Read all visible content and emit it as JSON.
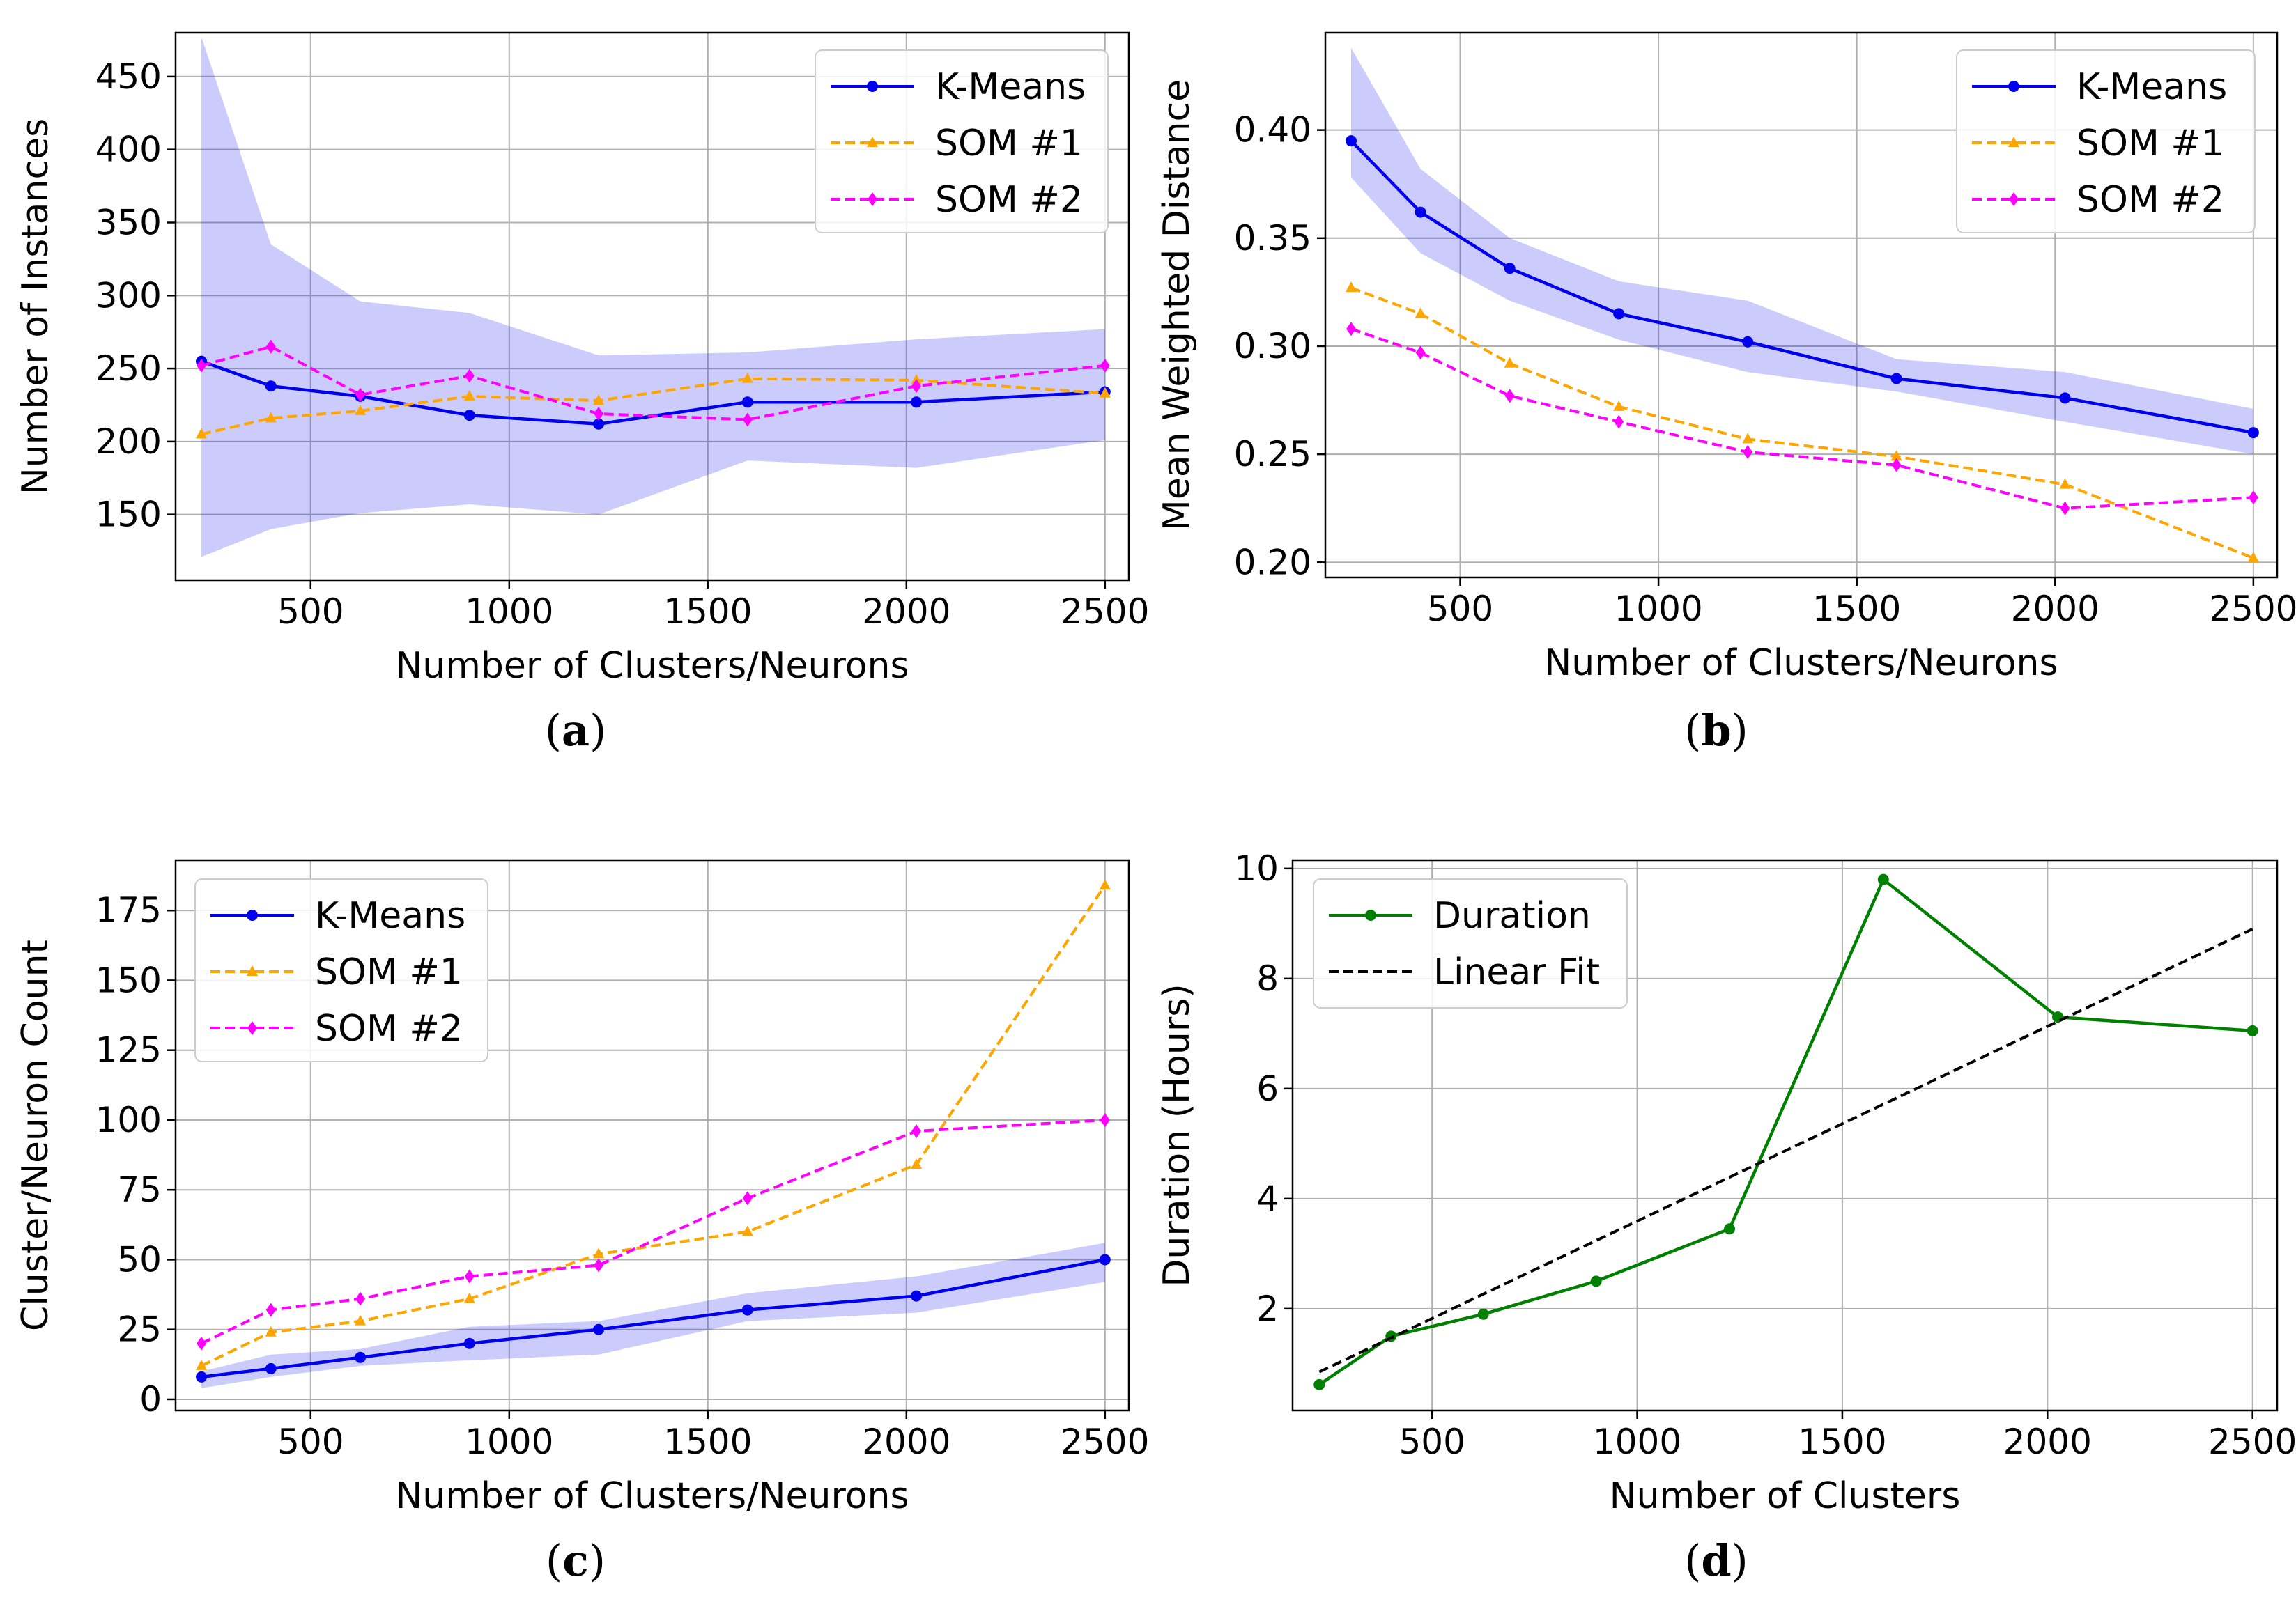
{
  "chart_data": [
    {
      "id": "a",
      "type": "line",
      "panel_label": "(a)",
      "xlabel": "Number of Clusters/Neurons",
      "ylabel": "Number of Instances",
      "xlim": [
        160,
        2560
      ],
      "ylim": [
        105,
        480
      ],
      "xticks": [
        500,
        1000,
        1500,
        2000,
        2500
      ],
      "yticks": [
        150,
        200,
        250,
        300,
        350,
        400,
        450
      ],
      "grid": true,
      "legend_position": "top-right",
      "x": [
        225,
        400,
        625,
        900,
        1225,
        1600,
        2025,
        2500
      ],
      "band": {
        "series": "K-Means",
        "lower": [
          121,
          140,
          151,
          157,
          150,
          187,
          182,
          201
        ],
        "upper": [
          477,
          335,
          296,
          288,
          259,
          261,
          270,
          277
        ]
      },
      "series": [
        {
          "name": "K-Means",
          "values": [
            255,
            238,
            231,
            218,
            212,
            227,
            227,
            234
          ],
          "color": "#0000ee",
          "style": "solid",
          "marker": "circle"
        },
        {
          "name": "SOM #1",
          "values": [
            205,
            216,
            221,
            231,
            228,
            243,
            242,
            233
          ],
          "color": "#ffa500",
          "style": "dashed",
          "marker": "triangle"
        },
        {
          "name": "SOM #2",
          "values": [
            252,
            265,
            232,
            245,
            219,
            215,
            238,
            252
          ],
          "color": "#ff00ff",
          "style": "dashed",
          "marker": "diamond"
        }
      ]
    },
    {
      "id": "b",
      "type": "line",
      "panel_label": "(b)",
      "xlabel": "Number of Clusters/Neurons",
      "ylabel": "Mean Weighted Distance",
      "xlim": [
        160,
        2560
      ],
      "ylim": [
        0.193,
        0.445
      ],
      "xticks": [
        500,
        1000,
        1500,
        2000,
        2500
      ],
      "yticks": [
        0.2,
        0.25,
        0.3,
        0.35,
        0.4
      ],
      "ytick_labels": [
        "0.20",
        "0.25",
        "0.30",
        "0.35",
        "0.40"
      ],
      "grid": true,
      "legend_position": "top-right",
      "x": [
        225,
        400,
        625,
        900,
        1225,
        1600,
        2025,
        2500
      ],
      "band": {
        "series": "K-Means",
        "lower": [
          0.378,
          0.343,
          0.321,
          0.303,
          0.288,
          0.279,
          0.265,
          0.25
        ],
        "upper": [
          0.438,
          0.382,
          0.35,
          0.33,
          0.321,
          0.294,
          0.288,
          0.271
        ]
      },
      "series": [
        {
          "name": "K-Means",
          "values": [
            0.395,
            0.362,
            0.336,
            0.315,
            0.302,
            0.285,
            0.276,
            0.26
          ],
          "color": "#0000ee",
          "style": "solid",
          "marker": "circle"
        },
        {
          "name": "SOM #1",
          "values": [
            0.327,
            0.315,
            0.292,
            0.272,
            0.257,
            0.249,
            0.236,
            0.202
          ],
          "color": "#ffa500",
          "style": "dashed",
          "marker": "triangle"
        },
        {
          "name": "SOM #2",
          "values": [
            0.308,
            0.297,
            0.277,
            0.265,
            0.251,
            0.245,
            0.225,
            0.23
          ],
          "color": "#ff00ff",
          "style": "dashed",
          "marker": "diamond"
        }
      ]
    },
    {
      "id": "c",
      "type": "line",
      "panel_label": "(c)",
      "xlabel": "Number of Clusters/Neurons",
      "ylabel": "Cluster/Neuron Count",
      "xlim": [
        160,
        2560
      ],
      "ylim": [
        -4,
        193
      ],
      "xticks": [
        500,
        1000,
        1500,
        2000,
        2500
      ],
      "yticks": [
        0,
        25,
        50,
        75,
        100,
        125,
        150,
        175
      ],
      "grid": true,
      "legend_position": "top-left",
      "x": [
        225,
        400,
        625,
        900,
        1225,
        1600,
        2025,
        2500
      ],
      "band": {
        "series": "K-Means",
        "lower": [
          4,
          8,
          12,
          14,
          16,
          28,
          31,
          42
        ],
        "upper": [
          10,
          16,
          18,
          26,
          28,
          38,
          44,
          56
        ]
      },
      "series": [
        {
          "name": "K-Means",
          "values": [
            8,
            11,
            15,
            20,
            25,
            32,
            37,
            50
          ],
          "color": "#0000ee",
          "style": "solid",
          "marker": "circle"
        },
        {
          "name": "SOM #1",
          "values": [
            12,
            24,
            28,
            36,
            52,
            60,
            84,
            184
          ],
          "color": "#ffa500",
          "style": "dashed",
          "marker": "triangle"
        },
        {
          "name": "SOM #2",
          "values": [
            20,
            32,
            36,
            44,
            48,
            72,
            96,
            100
          ],
          "color": "#ff00ff",
          "style": "dashed",
          "marker": "diamond"
        }
      ]
    },
    {
      "id": "d",
      "type": "line",
      "panel_label": "(d)",
      "xlabel": "Number of Clusters",
      "ylabel": "Duration (Hours)",
      "xlim": [
        160,
        2560
      ],
      "ylim": [
        0.15,
        10.15
      ],
      "xticks": [
        500,
        1000,
        1500,
        2000,
        2500
      ],
      "yticks": [
        2,
        4,
        6,
        8,
        10
      ],
      "grid": true,
      "legend_position": "top-left",
      "x": [
        225,
        400,
        625,
        900,
        1225,
        1600,
        2025,
        2500
      ],
      "series": [
        {
          "name": "Duration",
          "values": [
            0.62,
            1.5,
            1.9,
            2.5,
            3.45,
            9.8,
            7.3,
            7.05
          ],
          "color": "#008000",
          "style": "solid",
          "marker": "circle"
        },
        {
          "name": "Linear Fit",
          "x": [
            225,
            2500
          ],
          "values": [
            0.85,
            8.9
          ],
          "color": "#000000",
          "style": "dashed",
          "marker": "none"
        }
      ]
    }
  ]
}
